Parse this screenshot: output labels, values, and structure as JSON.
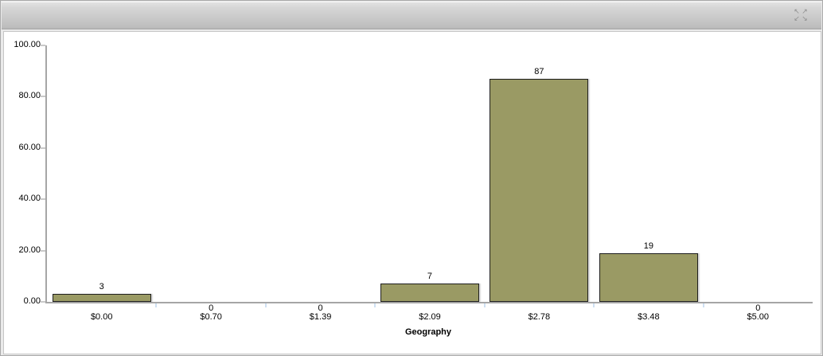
{
  "widget": {
    "header": {
      "title": "",
      "maximize_icon": "expand-arrows-icon",
      "arrow_glyphs": [
        "↖",
        "↗",
        "↙",
        "↘"
      ]
    }
  },
  "chart_data": {
    "type": "bar",
    "title": "",
    "xlabel": "Geography",
    "ylabel": "",
    "categories": [
      "$0.00",
      "$0.70",
      "$1.39",
      "$2.09",
      "$2.78",
      "$3.48",
      "$5.00"
    ],
    "values": [
      3,
      0,
      0,
      7,
      87,
      19,
      0
    ],
    "value_labels": [
      "3",
      "0",
      "0",
      "7",
      "87",
      "19",
      "0"
    ],
    "y_ticks": [
      {
        "value": 0,
        "label": "0.00"
      },
      {
        "value": 20,
        "label": "20.00"
      },
      {
        "value": 40,
        "label": "40.00"
      },
      {
        "value": 60,
        "label": "60.00"
      },
      {
        "value": 80,
        "label": "80.00"
      },
      {
        "value": 100,
        "label": "100.00"
      }
    ],
    "ylim": [
      0,
      100
    ],
    "grid": false,
    "legend": false,
    "colors": {
      "bar_fill": "#9a9a64",
      "bar_border": "#1f1f1f",
      "axis": "#a6a6a6",
      "y_tick": "#c9c9c9",
      "boundary_tick": "#cfe0f2",
      "text": "#000000"
    }
  }
}
